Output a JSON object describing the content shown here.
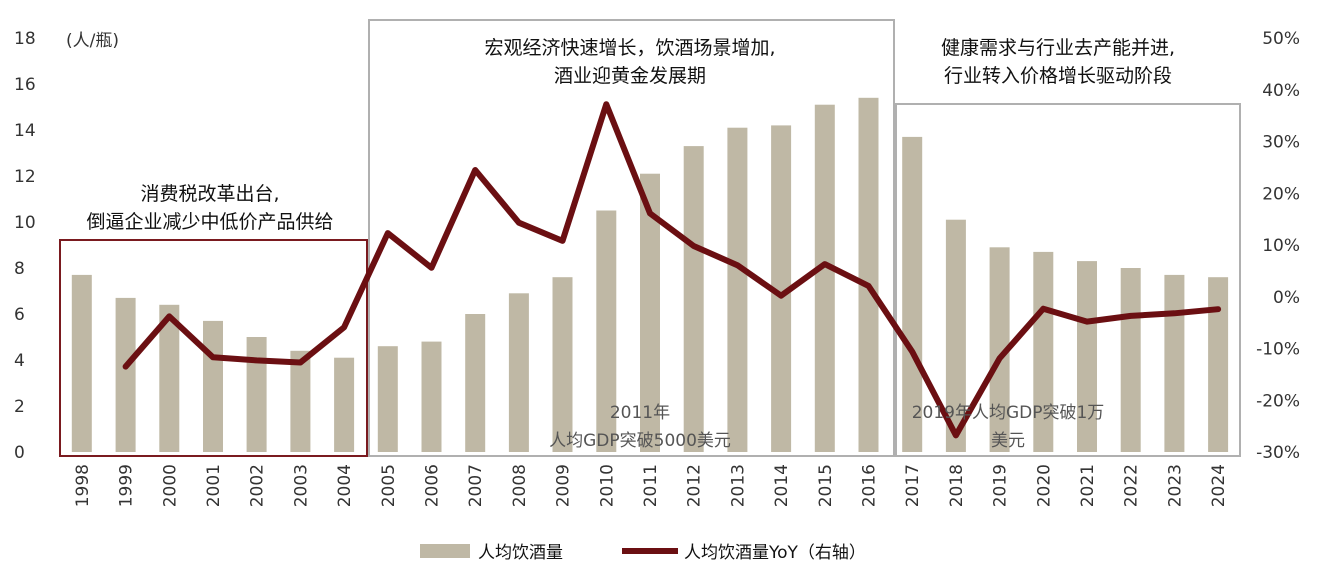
{
  "chart_data": {
    "type": "bar",
    "unit_label": "(人/瓶)",
    "categories": [
      "1998",
      "1999",
      "2000",
      "2001",
      "2002",
      "2003",
      "2004",
      "2005",
      "2006",
      "2007",
      "2008",
      "2009",
      "2010",
      "2011",
      "2012",
      "2013",
      "2014",
      "2015",
      "2016",
      "2017",
      "2018",
      "2019",
      "2020",
      "2021",
      "2022",
      "2023",
      "2024"
    ],
    "series": [
      {
        "name": "人均饮酒量",
        "kind": "bar",
        "axis": "left",
        "color": "#BFB8A5",
        "values": [
          7.7,
          6.7,
          6.4,
          5.7,
          5.0,
          4.4,
          4.1,
          4.6,
          4.8,
          6.0,
          6.9,
          7.6,
          10.5,
          12.1,
          13.3,
          14.1,
          14.2,
          15.1,
          15.4,
          13.7,
          10.1,
          8.9,
          8.7,
          8.3,
          8.0,
          7.7,
          7.6
        ]
      },
      {
        "name": "人均饮酒量YoY（右轴）",
        "kind": "line",
        "axis": "right",
        "color": "#6B0F12",
        "values": [
          null,
          -13.5,
          -3.8,
          -11.7,
          -12.3,
          -12.7,
          -5.9,
          12.3,
          5.6,
          24.5,
          14.3,
          10.8,
          37.2,
          16.1,
          9.8,
          6.1,
          0.2,
          6.3,
          2.1,
          -10.6,
          -26.8,
          -11.9,
          -2.3,
          -4.8,
          -3.7,
          -3.2,
          -2.4
        ]
      }
    ],
    "y_left": {
      "min": 0,
      "max": 18,
      "ticks": [
        "0",
        "2",
        "4",
        "6",
        "8",
        "10",
        "12",
        "14",
        "16",
        "18"
      ]
    },
    "y_right": {
      "min": -30,
      "max": 50,
      "ticks": [
        "-30%",
        "-20%",
        "-10%",
        "0%",
        "10%",
        "20%",
        "30%",
        "40%",
        "50%"
      ]
    },
    "legend": [
      {
        "label": "人均饮酒量",
        "kind": "bar"
      },
      {
        "label": "人均饮酒量YoY（右轴）",
        "kind": "line"
      }
    ],
    "annotations": {
      "box1_line1": "消费税改革出台,",
      "box1_line2": "倒逼企业减少中低价产品供给",
      "box2_line1": "宏观经济快速增长，饮酒场景增加,",
      "box2_line2": "酒业迎黄金发展期",
      "box3_line1": "健康需求与行业去产能并进,",
      "box3_line2": "行业转入价格增长驱动阶段",
      "note1_line1": "2011年",
      "note1_line2": "人均GDP突破5000美元",
      "note2_line1": "2019年人均GDP突破1万",
      "note2_line2": "美元"
    },
    "colors": {
      "box1_border": "#7A1A1F",
      "box_gray_border": "#B0B0B0"
    }
  }
}
